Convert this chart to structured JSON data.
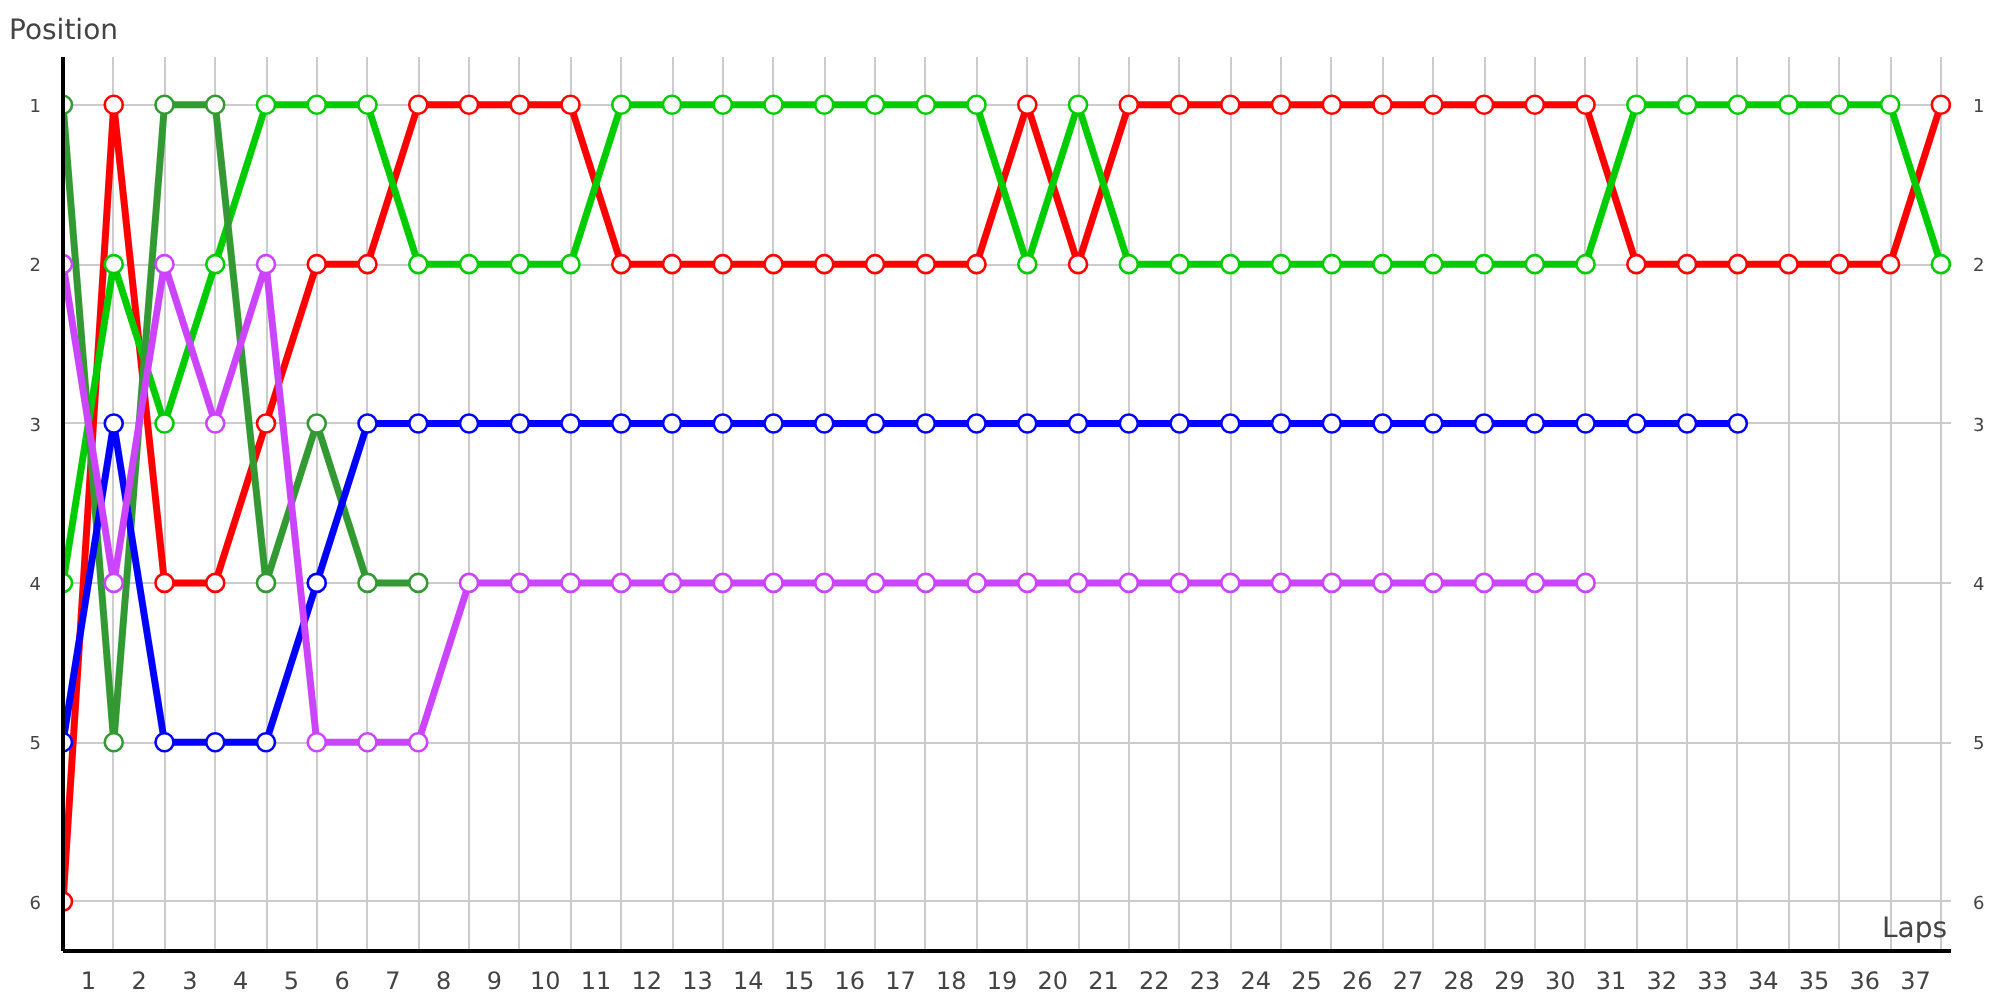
{
  "chart_data": {
    "type": "line",
    "xlabel": "Laps",
    "ylabel": "Position",
    "xlim": [
      0,
      37.2
    ],
    "ylim": [
      6.31,
      0.7
    ],
    "y2lim": [
      6.31,
      0.7
    ],
    "xticks": [
      {
        "value": 0,
        "label": null
      },
      {
        "value": 1,
        "label": null
      },
      {
        "value": 2,
        "label": null
      },
      {
        "value": 3,
        "label": null
      },
      {
        "value": 4,
        "label": null
      },
      {
        "value": 5,
        "label": null
      },
      {
        "value": 6,
        "label": null
      },
      {
        "value": 7,
        "label": null
      },
      {
        "value": 8,
        "label": null
      },
      {
        "value": 9,
        "label": null
      },
      {
        "value": 10,
        "label": null
      },
      {
        "value": 11,
        "label": null
      },
      {
        "value": 12,
        "label": null
      },
      {
        "value": 13,
        "label": null
      },
      {
        "value": 14,
        "label": null
      },
      {
        "value": 15,
        "label": null
      },
      {
        "value": 16,
        "label": null
      },
      {
        "value": 17,
        "label": null
      },
      {
        "value": 18,
        "label": null
      },
      {
        "value": 19,
        "label": null
      },
      {
        "value": 20,
        "label": null
      },
      {
        "value": 21,
        "label": null
      },
      {
        "value": 22,
        "label": null
      },
      {
        "value": 23,
        "label": null
      },
      {
        "value": 24,
        "label": null
      },
      {
        "value": 25,
        "label": null
      },
      {
        "value": 26,
        "label": null
      },
      {
        "value": 27,
        "label": null
      },
      {
        "value": 28,
        "label": null
      },
      {
        "value": 29,
        "label": null
      },
      {
        "value": 30,
        "label": null
      },
      {
        "value": 31,
        "label": null
      },
      {
        "value": 32,
        "label": null
      },
      {
        "value": 33,
        "label": null
      },
      {
        "value": 34,
        "label": null
      },
      {
        "value": 35,
        "label": null
      },
      {
        "value": 36,
        "label": null
      },
      {
        "value": 37,
        "label": null
      },
      {
        "value": 0.5,
        "label": "1"
      },
      {
        "value": 1.5,
        "label": "2"
      },
      {
        "value": 2.5,
        "label": "3"
      },
      {
        "value": 3.5,
        "label": "4"
      },
      {
        "value": 4.5,
        "label": "5"
      },
      {
        "value": 5.5,
        "label": "6"
      },
      {
        "value": 6.5,
        "label": "7"
      },
      {
        "value": 7.5,
        "label": "8"
      },
      {
        "value": 8.5,
        "label": "9"
      },
      {
        "value": 9.5,
        "label": "10"
      },
      {
        "value": 10.5,
        "label": "11"
      },
      {
        "value": 11.5,
        "label": "12"
      },
      {
        "value": 12.5,
        "label": "13"
      },
      {
        "value": 13.5,
        "label": "14"
      },
      {
        "value": 14.5,
        "label": "15"
      },
      {
        "value": 15.5,
        "label": "16"
      },
      {
        "value": 16.5,
        "label": "17"
      },
      {
        "value": 17.5,
        "label": "18"
      },
      {
        "value": 18.5,
        "label": "19"
      },
      {
        "value": 19.5,
        "label": "20"
      },
      {
        "value": 20.5,
        "label": "21"
      },
      {
        "value": 21.5,
        "label": "22"
      },
      {
        "value": 22.5,
        "label": "23"
      },
      {
        "value": 23.5,
        "label": "24"
      },
      {
        "value": 24.5,
        "label": "25"
      },
      {
        "value": 25.5,
        "label": "26"
      },
      {
        "value": 26.5,
        "label": "27"
      },
      {
        "value": 27.5,
        "label": "28"
      },
      {
        "value": 28.5,
        "label": "29"
      },
      {
        "value": 29.5,
        "label": "30"
      },
      {
        "value": 30.5,
        "label": "31"
      },
      {
        "value": 31.5,
        "label": "32"
      },
      {
        "value": 32.5,
        "label": "33"
      },
      {
        "value": 33.5,
        "label": "34"
      },
      {
        "value": 34.5,
        "label": "35"
      },
      {
        "value": 35.5,
        "label": "36"
      },
      {
        "value": 36.5,
        "label": "37"
      }
    ],
    "yticks": [
      1,
      2,
      3,
      4,
      5,
      6
    ],
    "y2ticks": [
      1,
      2,
      3,
      4,
      5,
      6
    ],
    "grid": true,
    "marker": "circle",
    "line_style": "solid",
    "series": [
      {
        "color": "#ff0000",
        "x": [
          0,
          1,
          2,
          3,
          4,
          5,
          6,
          7,
          8,
          9,
          10,
          11,
          12,
          13,
          14,
          15,
          16,
          17,
          18,
          19,
          20,
          21,
          22,
          23,
          24,
          25,
          26,
          27,
          28,
          29,
          30,
          31,
          32,
          33,
          34,
          35,
          36,
          37
        ],
        "values": [
          6,
          1,
          4,
          4,
          3,
          2,
          2,
          1,
          1,
          1,
          1,
          2,
          2,
          2,
          2,
          2,
          2,
          2,
          2,
          1,
          2,
          1,
          1,
          1,
          1,
          1,
          1,
          1,
          1,
          1,
          1,
          2,
          2,
          2,
          2,
          2,
          2,
          1
        ]
      },
      {
        "color": "#00cc00",
        "x": [
          0,
          1,
          2,
          3,
          4,
          5,
          6,
          7,
          8,
          9,
          10,
          11,
          12,
          13,
          14,
          15,
          16,
          17,
          18,
          19,
          20,
          21,
          22,
          23,
          24,
          25,
          26,
          27,
          28,
          29,
          30,
          31,
          32,
          33,
          34,
          35,
          36,
          37
        ],
        "values": [
          4,
          2,
          3,
          2,
          1,
          1,
          1,
          2,
          2,
          2,
          2,
          1,
          1,
          1,
          1,
          1,
          1,
          1,
          1,
          2,
          1,
          2,
          2,
          2,
          2,
          2,
          2,
          2,
          2,
          2,
          2,
          1,
          1,
          1,
          1,
          1,
          1,
          2
        ]
      },
      {
        "color": "#339933",
        "x": [
          0,
          1,
          2,
          3,
          4,
          5,
          6,
          7
        ],
        "values": [
          1,
          5,
          1,
          1,
          4,
          3,
          4,
          4
        ]
      },
      {
        "color": "#0000ff",
        "x": [
          0,
          1,
          2,
          3,
          4,
          5,
          6,
          7,
          8,
          9,
          10,
          11,
          12,
          13,
          14,
          15,
          16,
          17,
          18,
          19,
          20,
          21,
          22,
          23,
          24,
          25,
          26,
          27,
          28,
          29,
          30,
          31,
          32,
          33
        ],
        "values": [
          5,
          3,
          5,
          5,
          5,
          4,
          3,
          3,
          3,
          3,
          3,
          3,
          3,
          3,
          3,
          3,
          3,
          3,
          3,
          3,
          3,
          3,
          3,
          3,
          3,
          3,
          3,
          3,
          3,
          3,
          3,
          3,
          3,
          3
        ]
      },
      {
        "color": "#cc44ff",
        "x": [
          0,
          1,
          2,
          3,
          4,
          5,
          6,
          7,
          8,
          9,
          10,
          11,
          12,
          13,
          14,
          15,
          16,
          17,
          18,
          19,
          20,
          21,
          22,
          23,
          24,
          25,
          26,
          27,
          28,
          29,
          30
        ],
        "values": [
          2,
          4,
          2,
          3,
          2,
          5,
          5,
          5,
          4,
          4,
          4,
          4,
          4,
          4,
          4,
          4,
          4,
          4,
          4,
          4,
          4,
          4,
          4,
          4,
          4,
          4,
          4,
          4,
          4,
          4,
          4
        ]
      }
    ]
  }
}
